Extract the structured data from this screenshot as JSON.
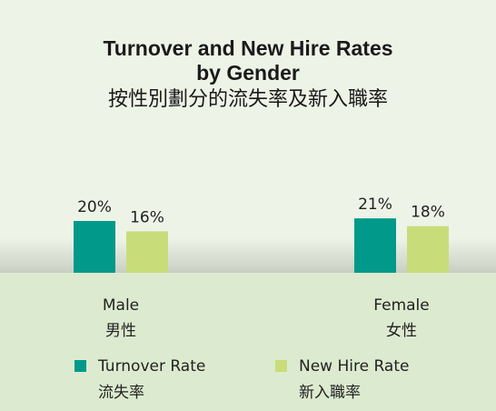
{
  "chart_data": {
    "type": "bar",
    "title": "Turnover and New Hire Rates",
    "title_line2": "by Gender",
    "title_zh": "按性別劃分的流失率及新入職率",
    "categories": [
      "Male",
      "Female"
    ],
    "categories_zh": [
      "男性",
      "女性"
    ],
    "series": [
      {
        "name": "Turnover Rate",
        "name_zh": "流失率",
        "color": "#00998a",
        "values": [
          20,
          21
        ],
        "value_labels": [
          "20%",
          "21%"
        ]
      },
      {
        "name": "New Hire Rate",
        "name_zh": "新入職率",
        "color": "#c8dd7a",
        "values": [
          16,
          18
        ],
        "value_labels": [
          "16%",
          "18%"
        ]
      }
    ],
    "ylim": [
      0,
      40
    ]
  }
}
